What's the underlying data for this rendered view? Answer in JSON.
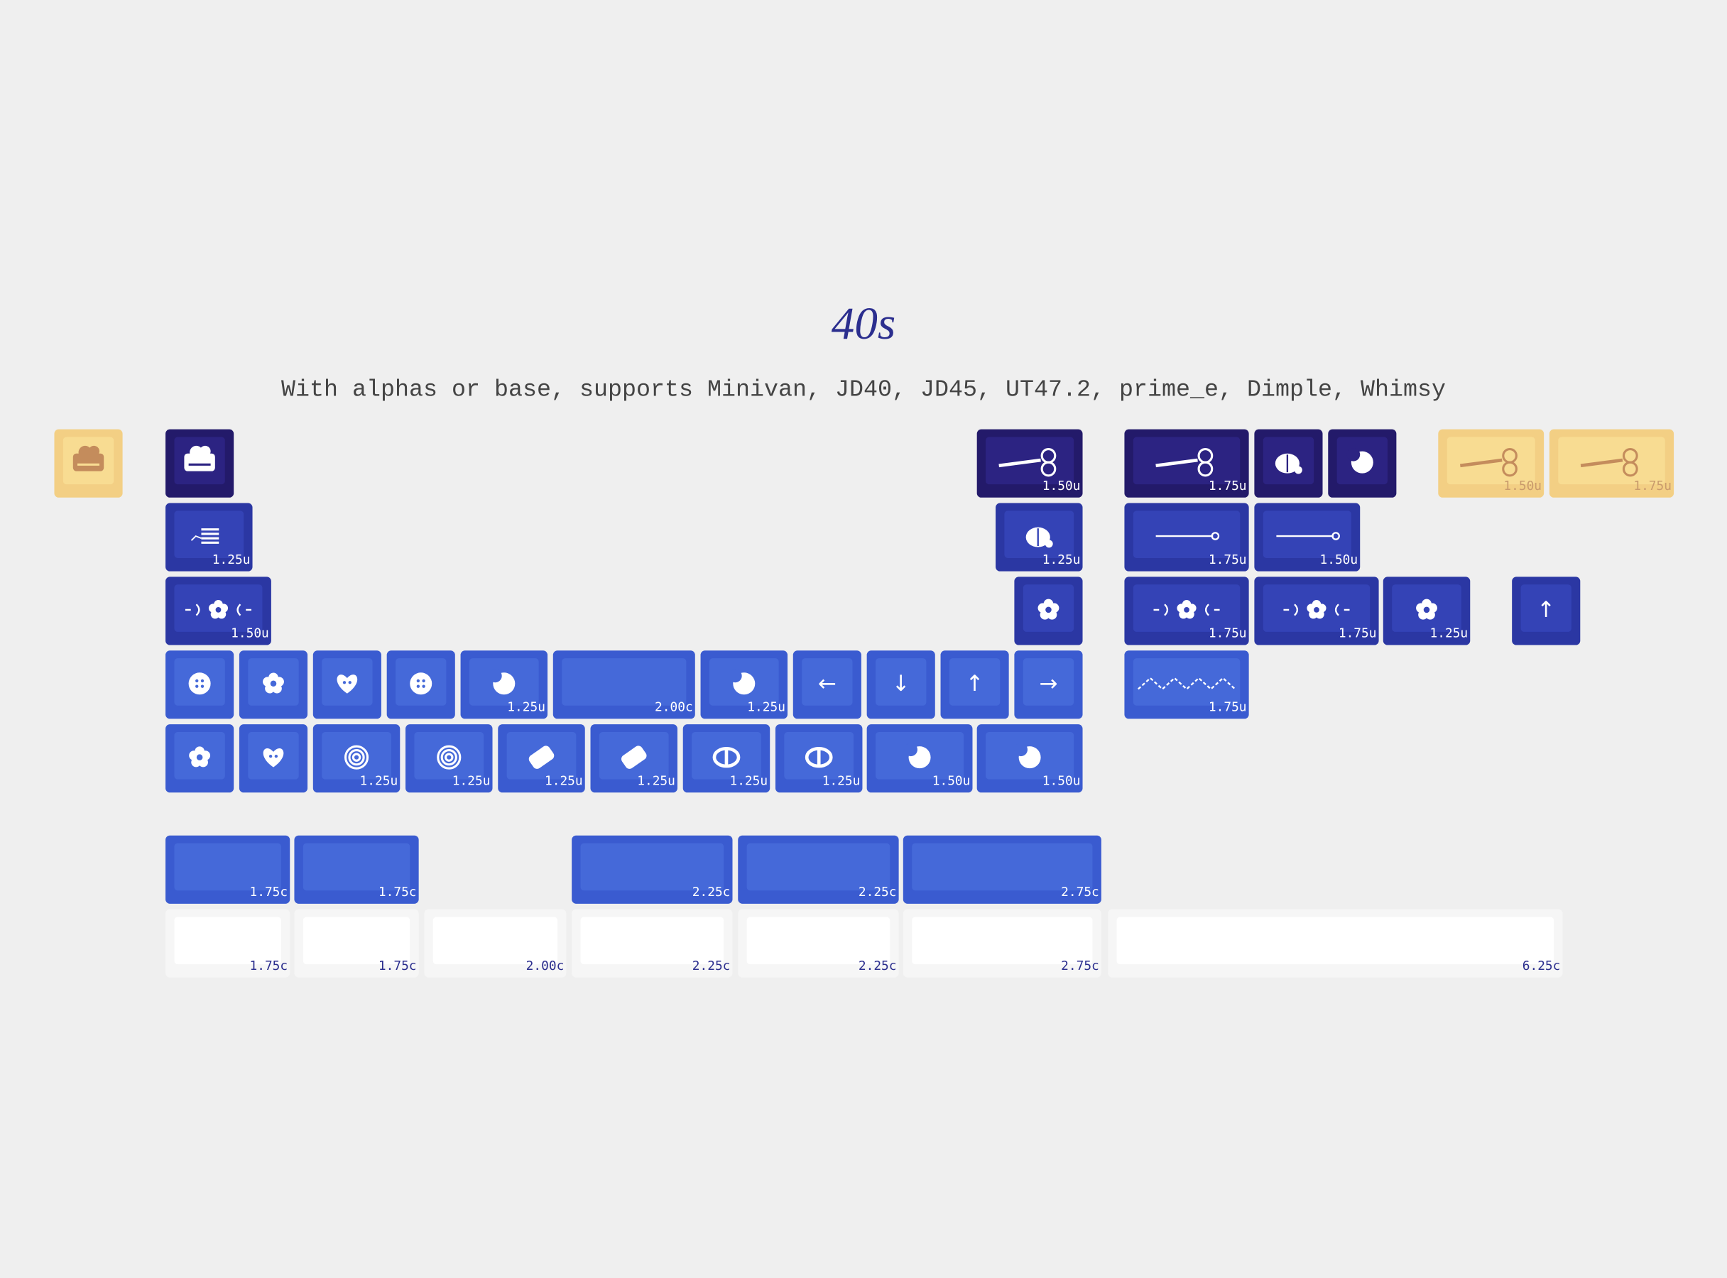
{
  "header": {
    "title": "40s",
    "subtitle": "With alphas or base, supports Minivan, JD40, JD45, UT47.2, prime_e, Dimple, Whimsy"
  },
  "size_labels": [
    "1.50u",
    "1.75u",
    "1.50u",
    "1.75u",
    "1.25u",
    "1.25u",
    "1.75u",
    "1.50u",
    "1.50u",
    "1.75u",
    "1.75u",
    "1.25u",
    "1.25u",
    "2.00c",
    "1.25u",
    "1.75u",
    "1.25u",
    "1.25u",
    "1.25u",
    "1.25u",
    "1.25u",
    "1.25u",
    "1.50u",
    "1.50u",
    "1.75c",
    "1.75c",
    "2.25c",
    "2.25c",
    "2.75c",
    "1.75c",
    "1.75c",
    "2.00c",
    "2.25c",
    "2.25c",
    "2.75c",
    "6.25c"
  ],
  "legends": [
    "↑",
    "←",
    "↓",
    "↑",
    "→"
  ]
}
